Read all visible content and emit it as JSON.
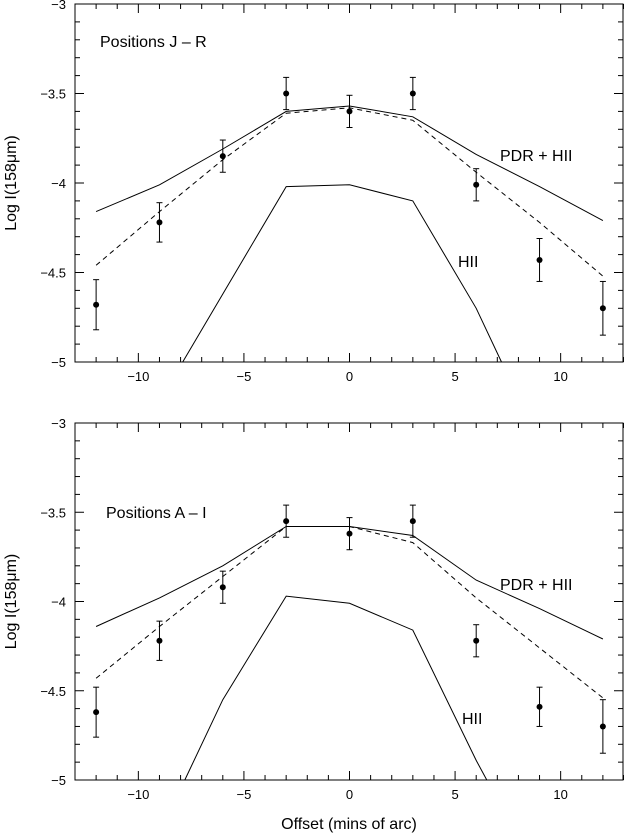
{
  "figure": {
    "xlabel": "Offset (mins of arc)"
  },
  "chart_data": [
    {
      "type": "line",
      "annotation": "Positions J – R",
      "xlabel": "",
      "ylabel": "Log I(158μm)",
      "xlim": [
        -13,
        13
      ],
      "ylim": [
        -5,
        -3
      ],
      "xticks": [
        -10,
        -5,
        0,
        5,
        10
      ],
      "yticks": [
        -5,
        -4.5,
        -4,
        -3.5,
        -3
      ],
      "xtick_labels": [
        "−10",
        "−5",
        "0",
        "5",
        "10"
      ],
      "ytick_labels": [
        "−5",
        "−4.5",
        "−4",
        "−3.5",
        "−3"
      ],
      "series": [
        {
          "name": "PDR + HII",
          "style": "solid",
          "x": [
            -12,
            -9,
            -6,
            -3,
            0,
            3,
            6,
            9,
            12
          ],
          "y": [
            -4.16,
            -4.01,
            -3.81,
            -3.6,
            -3.57,
            -3.63,
            -3.84,
            -4.02,
            -4.21
          ]
        },
        {
          "name": "HII",
          "style": "solid",
          "x": [
            -7.9,
            -6,
            -3,
            0,
            3,
            6,
            7.2
          ],
          "y": [
            -5.0,
            -4.62,
            -4.02,
            -4.01,
            -4.1,
            -4.7,
            -5.0
          ]
        },
        {
          "style": "dashed",
          "x": [
            -12,
            -9,
            -6,
            -3,
            0,
            3,
            6,
            9,
            12
          ],
          "y": [
            -4.46,
            -4.16,
            -3.87,
            -3.61,
            -3.58,
            -3.65,
            -3.94,
            -4.22,
            -4.52
          ]
        },
        {
          "style": "points",
          "x": [
            -12,
            -9,
            -6,
            -3,
            0,
            3,
            6,
            9,
            12
          ],
          "y": [
            -4.68,
            -4.22,
            -3.85,
            -3.5,
            -3.6,
            -3.5,
            -4.01,
            -4.43,
            -4.7
          ],
          "err": [
            0.14,
            0.11,
            0.09,
            0.09,
            0.09,
            0.09,
            0.09,
            0.12,
            0.15
          ]
        }
      ]
    },
    {
      "type": "line",
      "annotation": "Positions A – I",
      "xlabel": "Offset (mins of arc)",
      "ylabel": "Log I(158μm)",
      "xlim": [
        -13,
        13
      ],
      "ylim": [
        -5,
        -3
      ],
      "xticks": [
        -10,
        -5,
        0,
        5,
        10
      ],
      "yticks": [
        -5,
        -4.5,
        -4,
        -3.5,
        -3
      ],
      "xtick_labels": [
        "−10",
        "−5",
        "0",
        "5",
        "10"
      ],
      "ytick_labels": [
        "−5",
        "−4.5",
        "−4",
        "−3.5",
        "−3"
      ],
      "series": [
        {
          "name": "PDR + HII",
          "style": "solid",
          "x": [
            -12,
            -9,
            -6,
            -3,
            0,
            3,
            6,
            9,
            12
          ],
          "y": [
            -4.14,
            -3.98,
            -3.8,
            -3.58,
            -3.58,
            -3.63,
            -3.88,
            -4.04,
            -4.21
          ]
        },
        {
          "name": "HII",
          "style": "solid",
          "x": [
            -7.8,
            -6,
            -3,
            0,
            3,
            6,
            6.5
          ],
          "y": [
            -5.0,
            -4.55,
            -3.97,
            -4.01,
            -4.16,
            -4.89,
            -5.0
          ]
        },
        {
          "style": "dashed",
          "x": [
            -12,
            -9,
            -6,
            -3,
            0,
            3,
            6,
            9,
            12
          ],
          "y": [
            -4.43,
            -4.14,
            -3.86,
            -3.58,
            -3.58,
            -3.67,
            -3.98,
            -4.26,
            -4.54
          ]
        },
        {
          "style": "points",
          "x": [
            -12,
            -9,
            -6,
            -3,
            0,
            3,
            6,
            9,
            12
          ],
          "y": [
            -4.62,
            -4.22,
            -3.92,
            -3.55,
            -3.62,
            -3.55,
            -4.22,
            -4.59,
            -4.7
          ],
          "err": [
            0.14,
            0.11,
            0.09,
            0.09,
            0.09,
            0.09,
            0.09,
            0.11,
            0.15
          ]
        }
      ]
    }
  ]
}
